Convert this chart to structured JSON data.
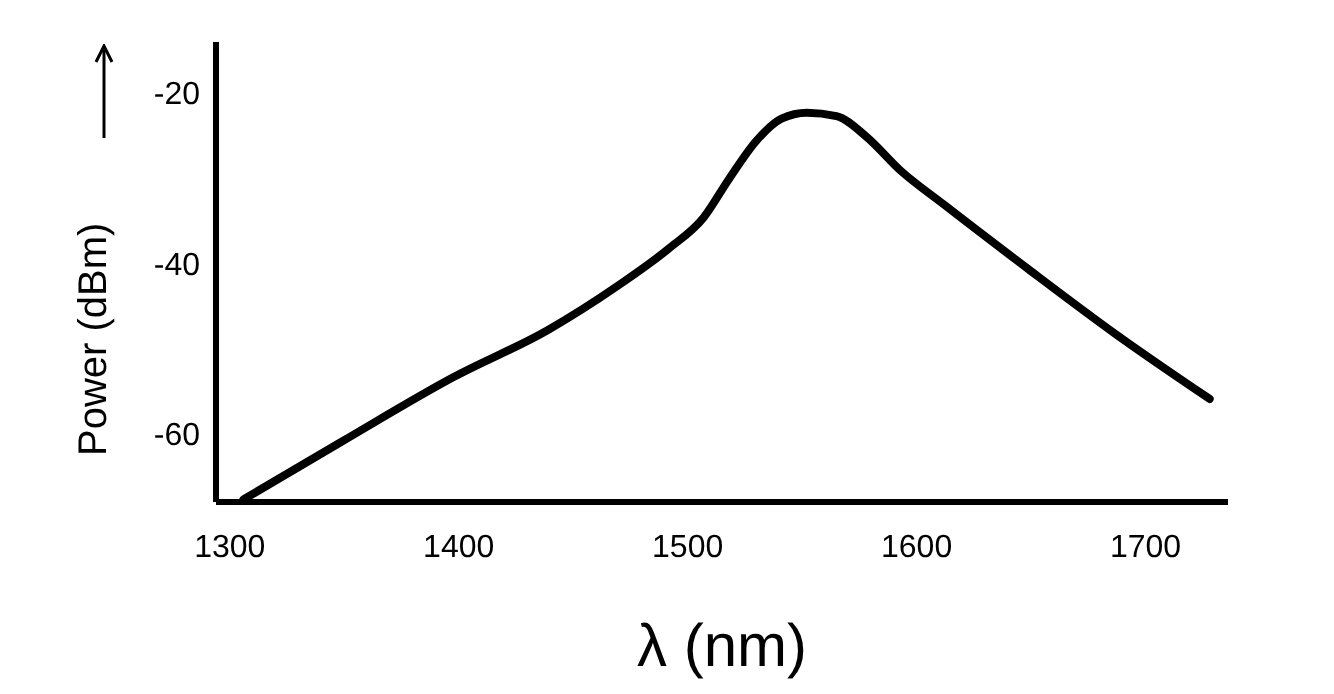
{
  "chart_data": {
    "type": "line",
    "xlabel": "λ (nm)",
    "ylabel": "Power (dBm)",
    "x": [
      1306,
      1349,
      1398,
      1439,
      1469,
      1492,
      1507,
      1518,
      1530,
      1541,
      1552,
      1565,
      1578,
      1593,
      1612,
      1649,
      1687,
      1728
    ],
    "series": [
      {
        "color": "#000000",
        "values": [
          -67.7,
          -60.9,
          -53.3,
          -47.8,
          -42.7,
          -38.2,
          -34.6,
          -30.1,
          -25.6,
          -23.0,
          -22.3,
          -22.7,
          -25.1,
          -29.1,
          -33.1,
          -40.7,
          -48.3,
          -55.9
        ]
      }
    ],
    "xlim": [
      1294,
      1736
    ],
    "xticks": [
      1300,
      1400,
      1500,
      1600,
      1700
    ],
    "ylim": [
      -68,
      -14
    ],
    "yticks": [
      -20,
      -40,
      -60
    ],
    "grid": false,
    "marker": "none",
    "line_style": "solid"
  }
}
